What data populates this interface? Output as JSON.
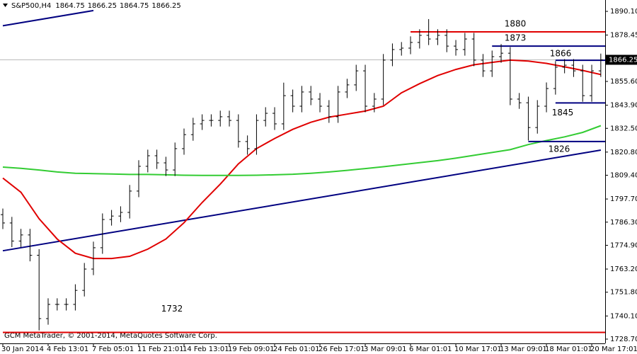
{
  "chart_data": {
    "type": "ohlc",
    "symbol": "S&P500,H4",
    "header_ohlc": [
      1864.75,
      1866.25,
      1864.75,
      1866.25
    ],
    "footer": "GCM MetaTrader, © 2001-2014, MetaQuotes Software Corp.",
    "color": "#000000",
    "xlim": [
      -0.3125,
      66.48
    ],
    "ylim": [
      1726.6,
      1895.7
    ],
    "xticks": [
      {
        "value": 0,
        "label": "30 Jan 2014"
      },
      {
        "value": 5,
        "label": "4 Feb 13:01"
      },
      {
        "value": 10,
        "label": "7 Feb 05:01"
      },
      {
        "value": 15,
        "label": "11 Feb 21:01"
      },
      {
        "value": 20,
        "label": "14 Feb 13:01"
      },
      {
        "value": 25,
        "label": "19 Feb 09:01"
      },
      {
        "value": 30,
        "label": "24 Feb 01:01"
      },
      {
        "value": 35,
        "label": "26 Feb 17:01"
      },
      {
        "value": 40,
        "label": "3 Mar 09:01"
      },
      {
        "value": 45,
        "label": "6 Mar 01:01"
      },
      {
        "value": 50,
        "label": "10 Mar 17:01"
      },
      {
        "value": 55,
        "label": "13 Mar 09:01"
      },
      {
        "value": 60,
        "label": "18 Mar 01:01"
      },
      {
        "value": 65,
        "label": "20 Mar 17:01"
      }
    ],
    "yticks": [
      {
        "value": 1890.1,
        "label": "1890.10"
      },
      {
        "value": 1878.45,
        "label": "1878.45"
      },
      {
        "value": 1855.6,
        "label": "1855.60"
      },
      {
        "value": 1843.9,
        "label": "1843.90"
      },
      {
        "value": 1832.5,
        "label": "1832.50"
      },
      {
        "value": 1820.8,
        "label": "1820.80"
      },
      {
        "value": 1809.4,
        "label": "1809.40"
      },
      {
        "value": 1797.7,
        "label": "1797.70"
      },
      {
        "value": 1786.3,
        "label": "1786.30"
      },
      {
        "value": 1774.9,
        "label": "1774.90"
      },
      {
        "value": 1763.2,
        "label": "1763.20"
      },
      {
        "value": 1751.8,
        "label": "1751.80"
      },
      {
        "value": 1740.1,
        "label": "1740.10"
      },
      {
        "value": 1728.7,
        "label": "1728.70"
      }
    ],
    "last": 1866.25,
    "open": [
      1790,
      1785.9,
      1777,
      1780,
      1770,
      1738.8,
      1745.8,
      1745.8,
      1745.8,
      1752.7,
      1763.2,
      1773.7,
      1787.6,
      1789.3,
      1791.1,
      1801.6,
      1813.8,
      1819,
      1815.5,
      1812,
      1822.5,
      1829.4,
      1834.7,
      1836.4,
      1836.4,
      1838.2,
      1836.4,
      1826,
      1822.5,
      1836.4,
      1839.9,
      1834.7,
      1848.6,
      1843.4,
      1850.4,
      1846.9,
      1843.4,
      1838.2,
      1850.4,
      1853.9,
      1860.8,
      1843.4,
      1846.9,
      1866.1,
      1871.3,
      1872,
      1874.8,
      1878.3,
      1876.5,
      1878.3,
      1873,
      1871.3,
      1876.5,
      1866.1,
      1860.8,
      1867.8,
      1869.5,
      1846.9,
      1845.1,
      1832.9,
      1843.4,
      1852.1,
      1862.6,
      1863.6,
      1860.8,
      1848.6,
      1860.8
    ],
    "high": [
      1793,
      1788.9,
      1783,
      1783,
      1773,
      1748.8,
      1748.8,
      1748.8,
      1755.7,
      1766.2,
      1776.7,
      1790.6,
      1792.3,
      1794.1,
      1804.6,
      1816.8,
      1822,
      1822,
      1818.5,
      1825.5,
      1832.4,
      1837.7,
      1839.4,
      1839.4,
      1841.2,
      1841.2,
      1839.4,
      1829,
      1839.4,
      1842.9,
      1842.9,
      1855,
      1851.6,
      1853.4,
      1853.4,
      1849.9,
      1846.4,
      1853.4,
      1856.9,
      1863.8,
      1863.8,
      1849.9,
      1869.1,
      1874.3,
      1875,
      1877.8,
      1881.3,
      1886.3,
      1881.3,
      1881.3,
      1876,
      1879.5,
      1879.5,
      1869.1,
      1870.8,
      1874,
      1872.5,
      1849.9,
      1848.1,
      1846.4,
      1855.1,
      1865.6,
      1866.6,
      1866.6,
      1863.8,
      1863.8,
      1869.3
    ],
    "low": [
      1782.9,
      1774,
      1774,
      1767,
      1733,
      1735.8,
      1742.8,
      1742.8,
      1742.8,
      1749.7,
      1760.2,
      1770.7,
      1784.6,
      1786.3,
      1788.1,
      1798.6,
      1810.8,
      1812.5,
      1809,
      1809,
      1819.5,
      1826.4,
      1831.7,
      1833.4,
      1833.4,
      1833.4,
      1823,
      1819.5,
      1819.5,
      1833.4,
      1831.7,
      1831.7,
      1840.4,
      1840.4,
      1843.9,
      1840.4,
      1835.2,
      1835.2,
      1847.4,
      1850.9,
      1840.4,
      1840.4,
      1843.9,
      1863.1,
      1868.3,
      1869,
      1871.8,
      1873.5,
      1873.5,
      1870,
      1868.3,
      1868.3,
      1863.1,
      1857.8,
      1857.8,
      1864.8,
      1843.9,
      1842.1,
      1826.5,
      1829.9,
      1840.4,
      1849.1,
      1859.6,
      1857.8,
      1845.6,
      1845.6,
      1857.8
    ],
    "close": [
      1785.9,
      1777,
      1780,
      1770,
      1738.8,
      1745.8,
      1745.8,
      1745.8,
      1752.7,
      1763.2,
      1773.7,
      1787.6,
      1789.3,
      1791.1,
      1801.6,
      1813.8,
      1819,
      1815.5,
      1812,
      1822.5,
      1829.4,
      1834.7,
      1836.4,
      1836.4,
      1838.2,
      1836.4,
      1826,
      1822.5,
      1836.4,
      1839.9,
      1834.7,
      1848.6,
      1843.4,
      1850.4,
      1846.9,
      1843.4,
      1838.2,
      1850.4,
      1853.9,
      1860.8,
      1843.4,
      1846.9,
      1866.1,
      1871.3,
      1872,
      1874.8,
      1878.3,
      1876.5,
      1878.3,
      1873,
      1871.3,
      1876.5,
      1866.1,
      1860.8,
      1867.8,
      1869.5,
      1846.9,
      1845.1,
      1832.9,
      1843.4,
      1852.1,
      1862.6,
      1863.6,
      1860.8,
      1848.6,
      1860.8,
      1866.25
    ],
    "lines": [
      {
        "color": "#e00000",
        "x": [
          0,
          2,
          4,
          6,
          8,
          10,
          12,
          14,
          16,
          18,
          20,
          22,
          24,
          26,
          28,
          30,
          32,
          34,
          36,
          38,
          40,
          42,
          44,
          46,
          48,
          50,
          52,
          54,
          56,
          58,
          60,
          62,
          64,
          66
        ],
        "values": [
          1808,
          1801,
          1788,
          1778,
          1771,
          1768.4,
          1768.4,
          1769.5,
          1773,
          1778,
          1786,
          1796,
          1805,
          1815,
          1822.5,
          1827.5,
          1832,
          1835.5,
          1838,
          1839.5,
          1841,
          1843.4,
          1850,
          1854.5,
          1858.5,
          1861.5,
          1863.8,
          1865,
          1866.1,
          1865.6,
          1864.5,
          1862.8,
          1861,
          1859
        ]
      },
      {
        "color": "#33cc33",
        "x": [
          0,
          2,
          4,
          6,
          8,
          10,
          12,
          14,
          16,
          18,
          20,
          22,
          24,
          26,
          28,
          30,
          32,
          34,
          36,
          38,
          40,
          42,
          44,
          46,
          48,
          50,
          52,
          54,
          56,
          58,
          60,
          62,
          64,
          66
        ],
        "values": [
          1813.4,
          1812.8,
          1812,
          1811,
          1810.4,
          1810.2,
          1810,
          1809.8,
          1809.8,
          1809.6,
          1809.4,
          1809.3,
          1809.3,
          1809.3,
          1809.4,
          1809.6,
          1809.9,
          1810.4,
          1811,
          1811.8,
          1812.7,
          1813.6,
          1814.6,
          1815.6,
          1816.6,
          1817.8,
          1819.2,
          1820.6,
          1822,
          1824.5,
          1826.5,
          1828.3,
          1830.5,
          1833.8
        ]
      }
    ],
    "trendlines": [
      {
        "color": "#000080",
        "x": [
          0,
          66
        ],
        "values": [
          1772.2,
          1821.8
        ]
      },
      {
        "color": "#000080",
        "x": [
          0,
          10
        ],
        "values": [
          1883,
          1890.5
        ]
      }
    ],
    "levels": [
      {
        "value": 1880,
        "color": "#e00000",
        "start": 45
      },
      {
        "value": 1873,
        "color": "#000080",
        "start": 54
      },
      {
        "value": 1866,
        "color": "#000080",
        "start": 61
      },
      {
        "value": 1845,
        "color": "#000080",
        "start": 61
      },
      {
        "value": 1826,
        "color": "#000080",
        "start": 58
      },
      {
        "value": 1732,
        "color": "#e00000",
        "start": 0
      }
    ]
  }
}
